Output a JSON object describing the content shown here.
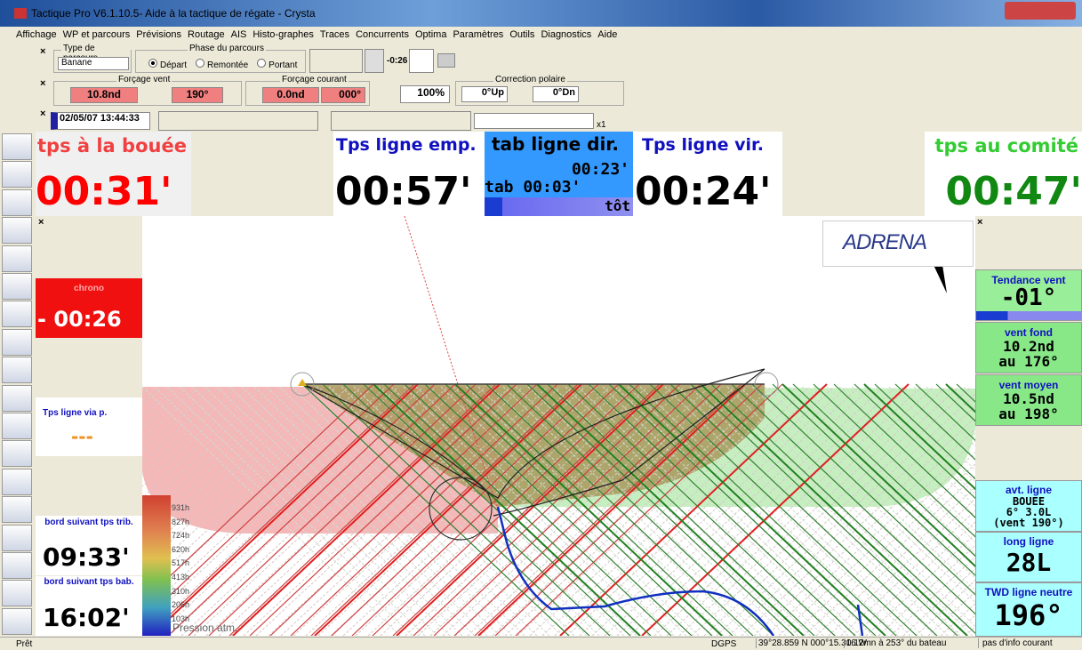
{
  "window": {
    "title": "Tactique Pro V6.1.10.5- Aide à la tactique de régate - Crysta"
  },
  "menu": [
    "Affichage",
    "WP et parcours",
    "Prévisions",
    "Routage",
    "AIS",
    "Histo-graphes",
    "Traces",
    "Concurrents",
    "Optima",
    "Paramètres",
    "Outils",
    "Diagnostics",
    "Aide"
  ],
  "toolbar": {
    "course_type_label": "Type de parcours",
    "course_type": "Banane",
    "phase_label": "Phase du parcours",
    "phases": [
      "Départ",
      "Remontée",
      "Portant"
    ],
    "timer": "-0:26",
    "wind_override_label": "Forçage vent",
    "wind_speed": "10.8nd",
    "wind_dir": "190°",
    "current_override_label": "Forçage courant",
    "current_speed": "0.0nd",
    "current_dir": "000°",
    "polar_percent": "100%",
    "polar_correction_label": "Correction polaire",
    "polar_up": "0°Up",
    "polar_down": "0°Dn",
    "datetime": "02/05/07 13:44:33",
    "speed": "x1"
  },
  "top_panels": [
    {
      "label": "tps à la bouée",
      "value": "00:31'"
    },
    {
      "label": "Tps ligne emp.",
      "value": "00:57'"
    },
    {
      "label": "Tps ligne vir.",
      "value": "00:24'"
    },
    {
      "label": "tps au comité",
      "value": "00:47'"
    }
  ],
  "tab_panel": {
    "label": "tab ligne dir.",
    "line1": "00:23'",
    "line2": "tab 00:03'",
    "status": "tôt"
  },
  "left_panels": {
    "chrono": {
      "label": "chrono",
      "value": "- 00:26"
    },
    "via": {
      "label": "Tps ligne via p.",
      "value": "---"
    },
    "starboard": {
      "label": "bord suivant tps trib.",
      "value": "09:33'"
    },
    "port": {
      "label": "bord suivant tps bab.",
      "value": "16:02'"
    }
  },
  "right_panels": {
    "trend": {
      "label": "Tendance vent",
      "value": "-01°"
    },
    "ground_wind": {
      "label": "vent fond",
      "speed": "10.2nd",
      "direction": "au 176°"
    },
    "mean_wind": {
      "label": "vent moyen",
      "speed": "10.5nd",
      "direction": "au 198°"
    },
    "advantage": {
      "label": "avt. ligne",
      "end": "BOUEE",
      "gain": "6° 3.0L",
      "wind": "(vent 190°)"
    },
    "length": {
      "label": "long ligne",
      "value": "28L"
    },
    "neutral_twd": {
      "label": "TWD ligne neutre",
      "value": "196°"
    }
  },
  "map": {
    "logo": "ADRENA",
    "pressure_label": "Pression atm.",
    "pressure_ticks": [
      "931h",
      "827h",
      "724h",
      "620h",
      "517h",
      "413h",
      "310h",
      "206h",
      "103h"
    ]
  },
  "status_bar": [
    "Prêt",
    "DGPS",
    "39°28.859 N 000°15.316 W",
    "0.12mn à 253° du bateau",
    "pas d'info courant"
  ]
}
